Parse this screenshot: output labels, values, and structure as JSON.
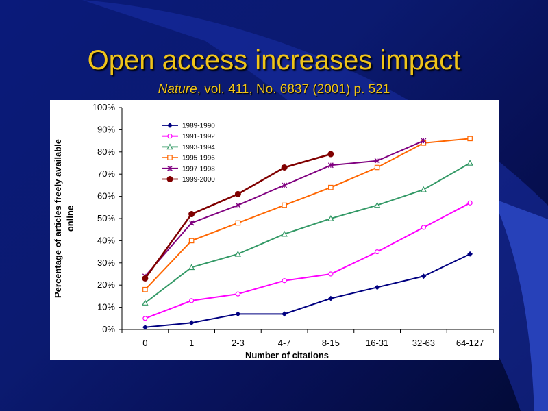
{
  "slide": {
    "title": "Open access increases impact",
    "subtitle_italic": "Nature",
    "subtitle_rest": ", vol. 411, No. 6837 (2001) p. 521"
  },
  "colors": {
    "background": "#0a1a7a",
    "title": "#f0c419",
    "swoosh": "#2a45c0"
  },
  "chart_data": {
    "type": "line",
    "title": "",
    "xlabel": "Number of citations",
    "ylabel": "Percentage of articles freely available online",
    "ylim": [
      0,
      100
    ],
    "y_ticks": [
      "0%",
      "10%",
      "20%",
      "30%",
      "40%",
      "50%",
      "60%",
      "70%",
      "80%",
      "90%",
      "100%"
    ],
    "categories": [
      "0",
      "1",
      "2-3",
      "4-7",
      "8-15",
      "16-31",
      "32-63",
      "64-127"
    ],
    "grid": false,
    "legend_position": "top-left",
    "series": [
      {
        "name": "1989-1990",
        "color": "#000080",
        "marker": "diamond",
        "values": [
          1,
          3,
          7,
          7,
          14,
          19,
          24,
          34
        ]
      },
      {
        "name": "1991-1992",
        "color": "#ff00ff",
        "marker": "circle-open",
        "values": [
          5,
          13,
          16,
          22,
          25,
          35,
          46,
          57
        ]
      },
      {
        "name": "1993-1994",
        "color": "#339966",
        "marker": "triangle-open",
        "values": [
          12,
          28,
          34,
          43,
          50,
          56,
          63,
          75
        ]
      },
      {
        "name": "1995-1996",
        "color": "#ff6600",
        "marker": "square-open",
        "values": [
          18,
          40,
          48,
          56,
          64,
          73,
          84,
          86
        ]
      },
      {
        "name": "1997-1998",
        "color": "#800080",
        "marker": "star",
        "values": [
          24,
          48,
          56,
          65,
          74,
          76,
          85,
          null
        ]
      },
      {
        "name": "1999-2000",
        "color": "#800000",
        "marker": "circle-filled",
        "values": [
          23,
          52,
          61,
          73,
          79,
          null,
          null,
          null
        ]
      }
    ]
  }
}
